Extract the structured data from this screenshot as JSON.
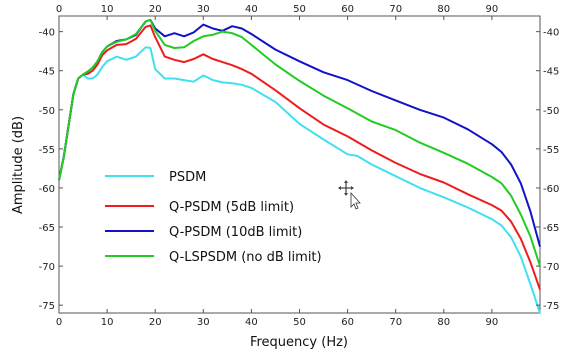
{
  "chart_data": {
    "type": "line",
    "title": "",
    "xlabel": "Frequency (Hz)",
    "ylabel": "Amplitude (dB)",
    "xlim": [
      0,
      100
    ],
    "ylim": [
      -76,
      -38
    ],
    "xticks": [
      0,
      10,
      20,
      30,
      40,
      50,
      60,
      70,
      80,
      90
    ],
    "xtick_labels": [
      "0",
      "10",
      "20",
      "30",
      "40",
      "50",
      "60",
      "70",
      "80",
      "90"
    ],
    "yticks": [
      -40,
      -45,
      -50,
      -55,
      -60,
      -65,
      -70,
      -75
    ],
    "ytick_labels": [
      "-40",
      "-45",
      "-50",
      "-55",
      "-60",
      "-65",
      "-70",
      "-75"
    ],
    "ytick_labels_right": [
      "-40",
      "-45",
      "-50",
      "-55",
      "-60",
      "-65",
      "-70",
      "-75"
    ],
    "grid": false,
    "legend_position": "center-left",
    "series": [
      {
        "name": "PSDM",
        "color": "#40e0f0",
        "x": [
          0,
          1,
          2,
          3,
          4,
          5,
          6,
          7,
          8,
          9,
          10,
          12,
          14,
          16,
          18,
          19,
          20,
          22,
          24,
          26,
          28,
          30,
          32,
          34,
          36,
          38,
          40,
          45,
          50,
          55,
          60,
          62,
          65,
          70,
          75,
          80,
          85,
          90,
          92,
          94,
          96,
          98,
          100
        ],
        "y": [
          -59,
          -56,
          -52,
          -48,
          -46,
          -45.5,
          -46,
          -46,
          -45.5,
          -44.5,
          -43.8,
          -43.2,
          -43.6,
          -43.2,
          -42.0,
          -42.1,
          -44.8,
          -46,
          -46,
          -46.2,
          -46.4,
          -45.6,
          -46.2,
          -46.5,
          -46.6,
          -46.8,
          -47.2,
          -49,
          -51.8,
          -53.8,
          -55.7,
          -55.9,
          -57,
          -58.5,
          -60,
          -61.2,
          -62.5,
          -64,
          -64.8,
          -66.3,
          -68.8,
          -72.3,
          -76
        ]
      },
      {
        "name": "Q-PSDM (5dB limit)",
        "color": "#ee1c1c",
        "x": [
          0,
          1,
          2,
          3,
          4,
          5,
          6,
          7,
          8,
          9,
          10,
          12,
          14,
          16,
          18,
          19,
          20,
          22,
          24,
          26,
          28,
          30,
          32,
          34,
          36,
          38,
          40,
          45,
          50,
          55,
          60,
          65,
          70,
          75,
          80,
          85,
          90,
          92,
          94,
          96,
          98,
          100
        ],
        "y": [
          -59,
          -56,
          -52,
          -48,
          -46,
          -45.5,
          -45.4,
          -45,
          -44.2,
          -43,
          -42.4,
          -41.7,
          -41.6,
          -40.9,
          -39.4,
          -39.2,
          -40.7,
          -43.2,
          -43.6,
          -43.9,
          -43.5,
          -42.9,
          -43.5,
          -43.9,
          -44.3,
          -44.8,
          -45.4,
          -47.5,
          -49.8,
          -51.9,
          -53.4,
          -55.2,
          -56.8,
          -58.2,
          -59.3,
          -60.8,
          -62.2,
          -62.9,
          -64.3,
          -66.5,
          -69.5,
          -73
        ]
      },
      {
        "name": "Q-PSDM (10dB limit)",
        "color": "#1212c8",
        "x": [
          0,
          1,
          2,
          3,
          4,
          5,
          6,
          7,
          8,
          9,
          10,
          12,
          14,
          16,
          18,
          19,
          20,
          22,
          24,
          26,
          28,
          30,
          32,
          34,
          36,
          38,
          40,
          45,
          50,
          55,
          60,
          65,
          70,
          75,
          80,
          85,
          90,
          92,
          94,
          96,
          98,
          100
        ],
        "y": [
          -59,
          -56,
          -52,
          -48,
          -46,
          -45.5,
          -45.1,
          -44.6,
          -43.8,
          -42.6,
          -41.9,
          -41.2,
          -41.0,
          -40.4,
          -38.7,
          -38.5,
          -39.6,
          -40.6,
          -40.2,
          -40.6,
          -40.1,
          -39.1,
          -39.6,
          -39.9,
          -39.3,
          -39.6,
          -40.3,
          -42.3,
          -43.8,
          -45.2,
          -46.2,
          -47.6,
          -48.8,
          -50,
          -51,
          -52.5,
          -54.4,
          -55.4,
          -57,
          -59.4,
          -63,
          -67.5
        ]
      },
      {
        "name": "Q-LSPSDM (no dB limit)",
        "color": "#22cc22",
        "x": [
          0,
          1,
          2,
          3,
          4,
          5,
          6,
          7,
          8,
          9,
          10,
          12,
          14,
          16,
          18,
          19,
          20,
          22,
          24,
          26,
          28,
          30,
          32,
          34,
          36,
          38,
          40,
          45,
          50,
          55,
          60,
          65,
          70,
          75,
          80,
          85,
          90,
          92,
          94,
          96,
          98,
          100
        ],
        "y": [
          -59,
          -56,
          -52,
          -48,
          -46,
          -45.5,
          -45.1,
          -44.6,
          -43.8,
          -42.6,
          -41.9,
          -41.3,
          -41.0,
          -40.3,
          -38.7,
          -38.5,
          -39.9,
          -41.7,
          -42.1,
          -42.0,
          -41.2,
          -40.6,
          -40.4,
          -40.0,
          -40.2,
          -40.7,
          -41.7,
          -44.2,
          -46.3,
          -48.2,
          -49.8,
          -51.5,
          -52.6,
          -54.2,
          -55.5,
          -56.9,
          -58.6,
          -59.4,
          -61,
          -63.4,
          -66.2,
          -70
        ]
      }
    ]
  }
}
